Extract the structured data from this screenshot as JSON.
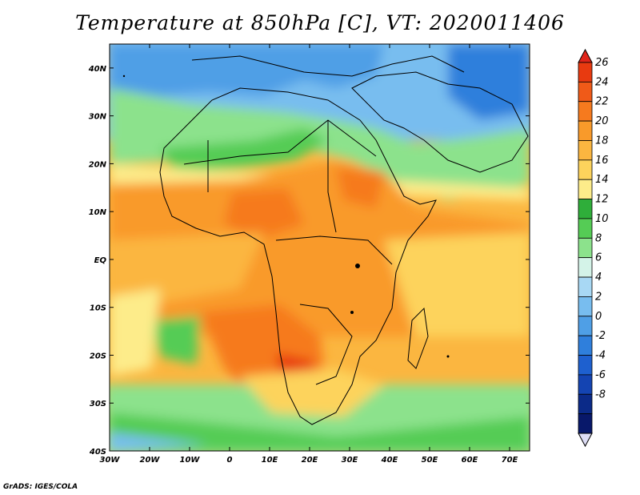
{
  "title": "Temperature at 850hPa [C], VT: 2020011406",
  "credit": "GrADS: IGES/COLA",
  "map": {
    "lon_range": [
      -30,
      75
    ],
    "lat_range": [
      -40,
      45
    ],
    "x_ticks": [
      "30W",
      "20W",
      "10W",
      "0",
      "10E",
      "20E",
      "30E",
      "40E",
      "50E",
      "60E",
      "70E"
    ],
    "y_ticks": [
      "40S",
      "30S",
      "20S",
      "10S",
      "EQ",
      "10N",
      "20N",
      "30N",
      "40N"
    ]
  },
  "colorbar": {
    "labels": [
      "26",
      "24",
      "22",
      "20",
      "18",
      "16",
      "14",
      "12",
      "10",
      "8",
      "6",
      "4",
      "2",
      "0",
      "-2",
      "-4",
      "-6",
      "-8"
    ],
    "colors": [
      "#e83a10",
      "#f05a18",
      "#f67a1e",
      "#f99a2a",
      "#fbb640",
      "#fdd35c",
      "#fdec8a",
      "#2fae3a",
      "#55cc55",
      "#8ce28c",
      "#d4f3e8",
      "#a8d8f4",
      "#78bdef",
      "#4f9fe6",
      "#2f7fdc",
      "#1e60cf",
      "#1444b2",
      "#0b2a88",
      "#08186a"
    ],
    "top_color": "#e0241a",
    "bottom_color": "#ddddf5"
  }
}
